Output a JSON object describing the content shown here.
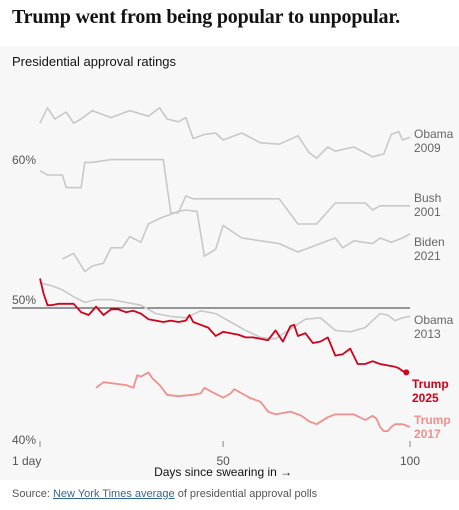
{
  "headline": "Trump went from being popular to unpopular.",
  "source": {
    "prefix": "Source: ",
    "link": "New York Times average",
    "suffix": " of presidential approval polls"
  },
  "chart_data": {
    "type": "line",
    "title": "Presidential approval ratings",
    "xlabel": "Days since swearing in →",
    "xlim": [
      1,
      100
    ],
    "ylim": [
      39.5,
      64
    ],
    "x_ticks": [
      {
        "value": 1,
        "label": "1 day"
      },
      {
        "value": 50,
        "label": "50"
      },
      {
        "value": 100,
        "label": "100"
      }
    ],
    "y_ticks": [
      {
        "value": 60,
        "label": "60%"
      },
      {
        "value": 50,
        "label": "50%"
      },
      {
        "value": 40,
        "label": "40%"
      }
    ],
    "reference_line": 50,
    "grid": false,
    "series": [
      {
        "name": "Obama 2009",
        "label_lines": [
          "Obama",
          "2009"
        ],
        "color": "#c8c8c8",
        "bold": false,
        "dot": false,
        "x": [
          1,
          3,
          5,
          8,
          10,
          12,
          15,
          20,
          25,
          30,
          33,
          35,
          38,
          40,
          42,
          45,
          48,
          50,
          55,
          60,
          65,
          70,
          73,
          75,
          78,
          80,
          85,
          90,
          93,
          95,
          97,
          98,
          100
        ],
        "y": [
          63.2,
          64.3,
          63.5,
          64.0,
          63.2,
          63.5,
          64.1,
          63.6,
          64.1,
          63.7,
          64.3,
          63.5,
          63.3,
          63.6,
          62.1,
          62.4,
          62.5,
          62.0,
          62.5,
          61.8,
          61.7,
          62.3,
          61.1,
          60.7,
          61.5,
          61.2,
          61.5,
          60.8,
          61.0,
          62.4,
          62.6,
          62.0,
          62.2
        ]
      },
      {
        "name": "Bush 2001",
        "label_lines": [
          "Bush",
          "2001"
        ],
        "color": "#c8c8c8",
        "bold": false,
        "dot": false,
        "x": [
          1,
          3,
          5,
          7,
          8,
          10,
          12,
          13,
          15,
          20,
          25,
          30,
          34,
          36,
          38,
          40,
          42,
          45,
          50,
          55,
          60,
          65,
          70,
          75,
          80,
          85,
          88,
          90,
          92,
          95,
          100
        ],
        "y": [
          59.8,
          59.5,
          59.5,
          59.5,
          58.6,
          58.6,
          58.6,
          60.4,
          60.4,
          60.6,
          60.6,
          60.6,
          60.6,
          56.8,
          56.8,
          58.0,
          57.8,
          57.8,
          57.8,
          57.8,
          57.8,
          57.8,
          56.0,
          56.0,
          57.5,
          57.5,
          57.5,
          57.0,
          57.3,
          57.3,
          57.3
        ]
      },
      {
        "name": "Biden 2021",
        "label_lines": [
          "Biden",
          "2021"
        ],
        "color": "#c8c8c8",
        "bold": false,
        "dot": false,
        "x": [
          7,
          10,
          13,
          15,
          18,
          20,
          23,
          25,
          28,
          30,
          33,
          35,
          38,
          40,
          43,
          45,
          48,
          50,
          55,
          60,
          65,
          70,
          75,
          78,
          80,
          82,
          85,
          90,
          92,
          95,
          98,
          100
        ],
        "y": [
          53.5,
          53.9,
          52.6,
          53.0,
          53.2,
          54.3,
          54.3,
          55.1,
          54.7,
          56.0,
          56.4,
          56.6,
          56.9,
          57.0,
          56.9,
          53.7,
          54.2,
          55.9,
          55.0,
          54.8,
          54.6,
          54.0,
          54.5,
          54.8,
          55.0,
          54.3,
          54.8,
          54.6,
          55.0,
          54.7,
          55.0,
          55.3
        ]
      },
      {
        "name": "Obama 2013",
        "label_lines": [
          "Obama",
          "2013"
        ],
        "color": "#c8c8c8",
        "bold": false,
        "dot": false,
        "x": [
          1,
          4,
          7,
          10,
          13,
          16,
          20,
          24,
          28,
          32,
          36,
          40,
          44,
          48,
          52,
          56,
          60,
          64,
          68,
          72,
          76,
          80,
          84,
          88,
          92,
          94,
          96,
          98,
          100
        ],
        "y": [
          51.8,
          51.6,
          51.3,
          50.8,
          50.4,
          50.6,
          50.6,
          50.4,
          50.2,
          49.6,
          49.4,
          49.3,
          49.8,
          49.6,
          49.0,
          48.4,
          47.9,
          47.8,
          48.5,
          49.2,
          49.3,
          48.4,
          48.3,
          48.6,
          49.6,
          49.5,
          49.1,
          49.3,
          49.4
        ]
      },
      {
        "name": "Trump 2017",
        "label_lines": [
          "Trump",
          "2017"
        ],
        "color": "#f0908e",
        "bold": true,
        "dot": false,
        "x": [
          16,
          18,
          21,
          24,
          26,
          27,
          28,
          30,
          31,
          33,
          35,
          38,
          42,
          44,
          45,
          47,
          50,
          52,
          53,
          55,
          57,
          60,
          62,
          64,
          68,
          71,
          73,
          75,
          78,
          80,
          84,
          85,
          88,
          90,
          91,
          92,
          93,
          94,
          95,
          96,
          97,
          98,
          100
        ],
        "y": [
          44.3,
          44.7,
          44.6,
          44.5,
          44.3,
          45.2,
          45.1,
          45.4,
          45.0,
          44.5,
          43.8,
          43.7,
          43.8,
          43.9,
          44.3,
          44.0,
          43.6,
          43.9,
          44.2,
          43.9,
          43.6,
          43.3,
          42.6,
          42.4,
          42.6,
          42.3,
          41.9,
          41.7,
          42.2,
          42.4,
          42.4,
          42.4,
          42.0,
          42.3,
          42.1,
          41.5,
          41.2,
          41.2,
          41.5,
          41.7,
          41.7,
          41.7,
          41.5
        ]
      },
      {
        "name": "Trump 2025",
        "label_lines": [
          "Trump",
          "2025"
        ],
        "color": "#d0021b",
        "bold": true,
        "dot": true,
        "x": [
          1,
          2,
          3,
          4,
          6,
          8,
          10,
          12,
          14,
          16,
          18,
          20,
          22,
          24,
          26,
          28,
          30,
          32,
          34,
          36,
          38,
          40,
          41,
          42,
          44,
          46,
          48,
          50,
          52,
          54,
          56,
          58,
          60,
          62,
          64,
          66,
          68,
          69,
          70,
          72,
          74,
          76,
          78,
          80,
          82,
          84,
          86,
          88,
          90,
          92,
          94,
          96,
          97,
          98,
          99
        ],
        "y": [
          52.1,
          51.0,
          50.2,
          50.2,
          50.3,
          50.3,
          50.3,
          49.7,
          49.5,
          50.1,
          49.5,
          49.9,
          49.9,
          49.7,
          49.8,
          49.6,
          49.2,
          49.1,
          49.0,
          49.1,
          49.0,
          49.1,
          49.5,
          49.0,
          48.8,
          48.6,
          48.0,
          48.3,
          48.2,
          48.1,
          47.9,
          47.9,
          47.8,
          47.7,
          48.4,
          47.6,
          48.7,
          48.8,
          48.0,
          48.2,
          47.5,
          47.6,
          47.9,
          46.6,
          46.7,
          47.1,
          46.0,
          46.0,
          46.2,
          46.0,
          45.9,
          45.8,
          45.7,
          45.5,
          45.4
        ]
      }
    ]
  }
}
